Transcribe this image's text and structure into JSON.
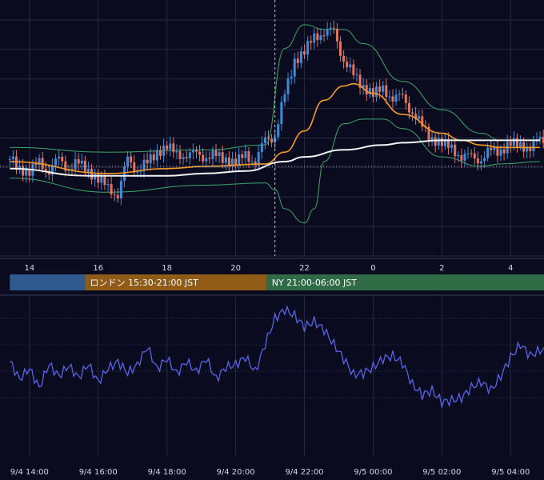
{
  "colors": {
    "background": "#0b0b1f",
    "grid": "#262a40",
    "candle_up": "#3d8bd9",
    "candle_down": "#e3735f",
    "bollinger": "#3aa86a",
    "ma_fast": "#f39a2a",
    "ma_slow": "#f2f2f2",
    "oscillator": "#5a64e8",
    "tokyo": "#2f5a8f",
    "london": "#8f5b17",
    "ny": "#2f6b45"
  },
  "sessions": [
    {
      "label": "",
      "color": "#2f5a8f",
      "start": 0,
      "end": 7.68
    },
    {
      "label": "ロンドン 15:30-21:00 JST",
      "color": "#8f5b17",
      "start": 7.68,
      "end": 26.19
    },
    {
      "label": "NY 21:00-06:00 JST",
      "color": "#2f6b45",
      "start": 26.19,
      "end": 54.4
    }
  ],
  "chart_data": [
    {
      "type": "candlestick",
      "title": "",
      "x_axis": {
        "range": [
          -1.0,
          54.4
        ],
        "ticks": [
          2,
          9,
          16,
          23,
          30,
          37,
          44,
          51
        ],
        "tick_labels": [
          "14",
          "16",
          "18",
          "20",
          "22",
          "0",
          "2",
          "4"
        ]
      },
      "y_axis": {
        "range": [
          0,
          100
        ],
        "labels_shown": false
      },
      "cursor_x": 27.0,
      "baseline_level": 38.0,
      "candles": [
        [
          0,
          41
        ],
        [
          1,
          37
        ],
        [
          2,
          36
        ],
        [
          3,
          39
        ],
        [
          4,
          37
        ],
        [
          5,
          40
        ],
        [
          6,
          38
        ],
        [
          7,
          39
        ],
        [
          8,
          36
        ],
        [
          9,
          33
        ],
        [
          10,
          28
        ],
        [
          11,
          27
        ],
        [
          12,
          40
        ],
        [
          13,
          37
        ],
        [
          14,
          39
        ],
        [
          15,
          44
        ],
        [
          16,
          47
        ],
        [
          17,
          42
        ],
        [
          18,
          44
        ],
        [
          19,
          42
        ],
        [
          20,
          43
        ],
        [
          21,
          42
        ],
        [
          22,
          41
        ],
        [
          23,
          40
        ],
        [
          24,
          42
        ],
        [
          25,
          41
        ],
        [
          26,
          48
        ],
        [
          27,
          52
        ],
        [
          28,
          68
        ],
        [
          29,
          83
        ],
        [
          30,
          87
        ],
        [
          31,
          92
        ],
        [
          32,
          96
        ],
        [
          33,
          94
        ],
        [
          34,
          84
        ],
        [
          35,
          76
        ],
        [
          36,
          72
        ],
        [
          37,
          69
        ],
        [
          38,
          70
        ],
        [
          39,
          68
        ],
        [
          40,
          66
        ],
        [
          41,
          62
        ],
        [
          42,
          54
        ],
        [
          43,
          50
        ],
        [
          44,
          48
        ],
        [
          45,
          45
        ],
        [
          46,
          43
        ],
        [
          47,
          41
        ],
        [
          48,
          42
        ],
        [
          49,
          44
        ],
        [
          50,
          45
        ],
        [
          51,
          48
        ],
        [
          52,
          46
        ],
        [
          53,
          47
        ],
        [
          54,
          48
        ]
      ],
      "series": [
        {
          "kind": "bollinger_upper",
          "values": [
            [
              0,
              46
            ],
            [
              10,
              44
            ],
            [
              20,
              45
            ],
            [
              26,
              47
            ],
            [
              28,
              88
            ],
            [
              30,
              98
            ],
            [
              32,
              96
            ],
            [
              34,
              96
            ],
            [
              36,
              90
            ],
            [
              40,
              74
            ],
            [
              44,
              62
            ],
            [
              48,
              52
            ],
            [
              50,
              49
            ],
            [
              54,
              49
            ]
          ]
        },
        {
          "kind": "bollinger_lower",
          "values": [
            [
              0,
              33
            ],
            [
              10,
              27
            ],
            [
              20,
              30
            ],
            [
              26,
              31
            ],
            [
              27,
              28
            ],
            [
              28,
              20
            ],
            [
              30,
              14
            ],
            [
              31,
              20
            ],
            [
              32,
              40
            ],
            [
              34,
              56
            ],
            [
              36,
              58
            ],
            [
              38,
              58
            ],
            [
              40,
              54
            ],
            [
              44,
              42
            ],
            [
              48,
              38
            ],
            [
              50,
              39
            ],
            [
              54,
              40
            ]
          ]
        },
        {
          "kind": "ma_fast",
          "values": [
            [
              0,
              40
            ],
            [
              10,
              35
            ],
            [
              16,
              37
            ],
            [
              20,
              38
            ],
            [
              26,
              39
            ],
            [
              28,
              44
            ],
            [
              30,
              53
            ],
            [
              32,
              66
            ],
            [
              34,
              72
            ],
            [
              35,
              73
            ],
            [
              37,
              69
            ],
            [
              40,
              60
            ],
            [
              44,
              52
            ],
            [
              46,
              49
            ],
            [
              48,
              47
            ],
            [
              50,
              46
            ],
            [
              54,
              46
            ]
          ]
        },
        {
          "kind": "ma_slow",
          "values": [
            [
              0,
              37
            ],
            [
              8,
              34
            ],
            [
              16,
              34
            ],
            [
              20,
              35
            ],
            [
              24,
              36
            ],
            [
              28,
              40
            ],
            [
              30,
              42
            ],
            [
              34,
              45
            ],
            [
              38,
              47
            ],
            [
              40,
              48
            ],
            [
              44,
              49
            ],
            [
              48,
              49
            ],
            [
              52,
              49
            ],
            [
              54,
              49
            ]
          ]
        }
      ]
    },
    {
      "type": "line",
      "title": "",
      "x_axis": {
        "range": [
          -1.0,
          54.4
        ],
        "ticks": [
          2,
          9,
          16,
          23,
          30,
          37,
          44,
          51
        ],
        "tick_labels": [
          "9/4 14:00",
          "9/4 16:00",
          "9/4 18:00",
          "9/4 20:00",
          "9/4 22:00",
          "9/5 00:00",
          "9/5 02:00",
          "9/5 04:00"
        ]
      },
      "y_axis": {
        "range": [
          0,
          100
        ],
        "labels_shown": false
      },
      "series": [
        {
          "kind": "oscillator",
          "values": [
            [
              0,
              60
            ],
            [
              1,
              48
            ],
            [
              2,
              55
            ],
            [
              3,
              42
            ],
            [
              4,
              58
            ],
            [
              5,
              50
            ],
            [
              6,
              57
            ],
            [
              7,
              49
            ],
            [
              8,
              58
            ],
            [
              9,
              46
            ],
            [
              10,
              55
            ],
            [
              11,
              60
            ],
            [
              12,
              52
            ],
            [
              13,
              58
            ],
            [
              14,
              70
            ],
            [
              15,
              55
            ],
            [
              16,
              62
            ],
            [
              17,
              52
            ],
            [
              18,
              60
            ],
            [
              19,
              53
            ],
            [
              20,
              62
            ],
            [
              21,
              48
            ],
            [
              22,
              56
            ],
            [
              23,
              58
            ],
            [
              24,
              63
            ],
            [
              25,
              53
            ],
            [
              26,
              72
            ],
            [
              27,
              90
            ],
            [
              28,
              96
            ],
            [
              29,
              92
            ],
            [
              30,
              84
            ],
            [
              31,
              88
            ],
            [
              32,
              82
            ],
            [
              33,
              72
            ],
            [
              34,
              62
            ],
            [
              35,
              51
            ],
            [
              36,
              52
            ],
            [
              37,
              56
            ],
            [
              38,
              62
            ],
            [
              39,
              64
            ],
            [
              40,
              59
            ],
            [
              41,
              44
            ],
            [
              42,
              37
            ],
            [
              43,
              40
            ],
            [
              44,
              32
            ],
            [
              45,
              33
            ],
            [
              46,
              35
            ],
            [
              47,
              42
            ],
            [
              48,
              46
            ],
            [
              49,
              40
            ],
            [
              50,
              50
            ],
            [
              51,
              63
            ],
            [
              52,
              72
            ],
            [
              53,
              64
            ],
            [
              54,
              68
            ]
          ]
        }
      ]
    }
  ]
}
